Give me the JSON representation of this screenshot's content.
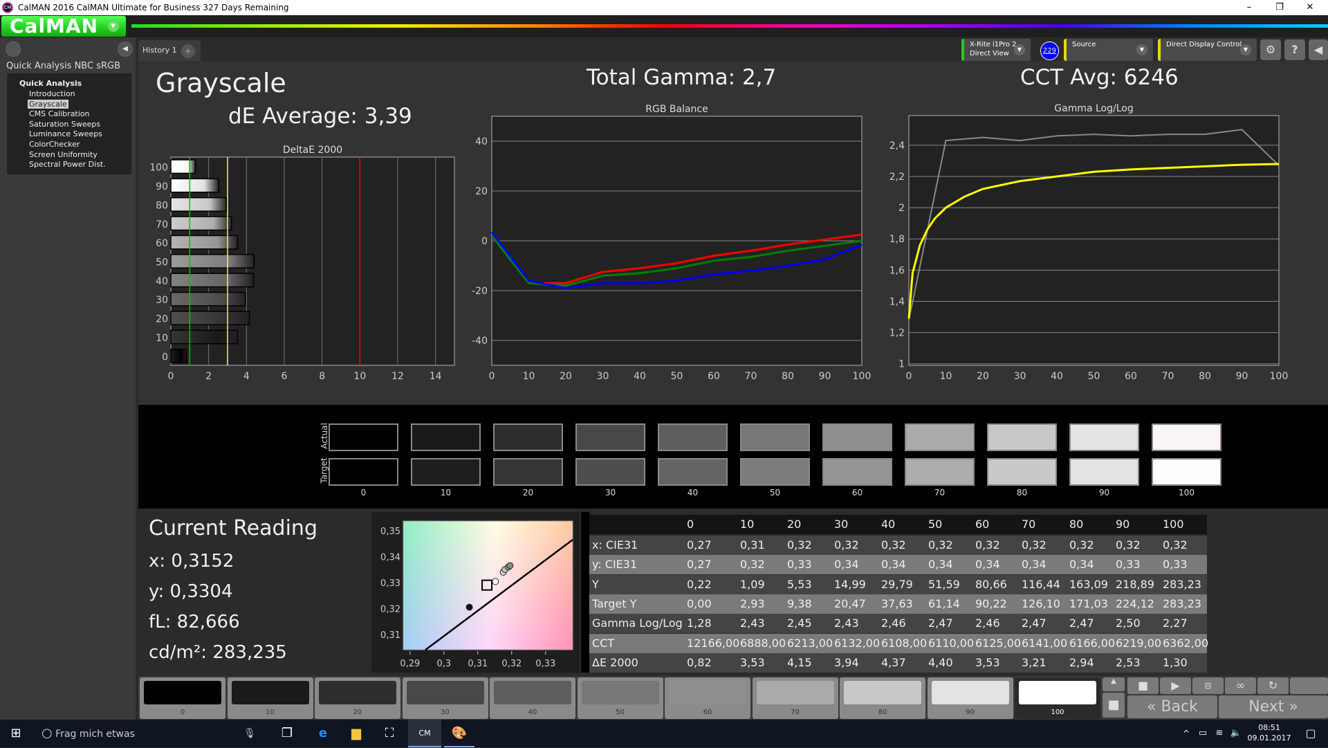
{
  "window": {
    "title": "CalMAN 2016 CalMAN Ultimate for Business 327 Days Remaining",
    "logo_text": "CM",
    "minimize": "–",
    "maximize": "❐",
    "close": "✕"
  },
  "app": {
    "logo": "CalMAN",
    "accent": "#33cc33"
  },
  "sidebar": {
    "title": "Quick Analysis NBC sRGB",
    "root": "Quick Analysis",
    "items": [
      {
        "label": "Introduction"
      },
      {
        "label": "Grayscale",
        "selected": true
      },
      {
        "label": "CMS Calibration"
      },
      {
        "label": "Saturation Sweeps"
      },
      {
        "label": "Luminance Sweeps"
      },
      {
        "label": "ColorChecker"
      },
      {
        "label": "Screen Uniformity"
      },
      {
        "label": "Spectral Power Dist."
      }
    ]
  },
  "tabs": [
    {
      "label": "History 1"
    }
  ],
  "tab_add": "+",
  "toolbar": {
    "meter_line1": "X-Rite i1Pro 2",
    "meter_line2": "Direct View",
    "badge": "229",
    "source": "Source",
    "display": "Direct Display Control",
    "settings_icon": "gear-icon",
    "help": "?",
    "collapse_icon": "chevron-left-icon"
  },
  "header": {
    "page_title": "Grayscale",
    "de_average": "dE Average: 3,39",
    "total_gamma": "Total Gamma: 2,7",
    "cct_avg": "CCT Avg: 6246"
  },
  "chart_data": [
    {
      "type": "bar",
      "title": "DeltaE 2000",
      "orientation": "horizontal",
      "categories": [
        "0",
        "10",
        "20",
        "30",
        "40",
        "50",
        "60",
        "70",
        "80",
        "90",
        "100"
      ],
      "values": [
        0.82,
        3.53,
        4.15,
        3.94,
        4.37,
        4.4,
        3.53,
        3.21,
        2.94,
        2.53,
        1.3
      ],
      "xlim": [
        0,
        15
      ],
      "xticks": [
        "0",
        "2",
        "4",
        "6",
        "8",
        "10",
        "12",
        "14"
      ],
      "reference_lines": [
        {
          "value": 1,
          "color": "#22aa22"
        },
        {
          "value": 3,
          "color": "#ffff00"
        },
        {
          "value": 10,
          "color": "#ff0000"
        }
      ],
      "grid": true
    },
    {
      "type": "line",
      "title": "RGB Balance",
      "x": [
        0,
        10,
        20,
        30,
        40,
        50,
        60,
        70,
        80,
        90,
        100
      ],
      "ylim": [
        -50,
        50
      ],
      "yticks": [
        "40",
        "20",
        "0",
        "-20",
        "-40"
      ],
      "xticks": [
        "0",
        "10",
        "20",
        "30",
        "40",
        "50",
        "60",
        "70",
        "80",
        "90",
        "100"
      ],
      "grid": true,
      "series": [
        {
          "color": "#ff0000",
          "values": [
            2,
            -17,
            -17,
            -12.5,
            -11,
            -9,
            -6,
            -4,
            -1.5,
            0.5,
            2.5
          ]
        },
        {
          "color": "#008000",
          "values": [
            2,
            -17,
            -18,
            -14,
            -13,
            -11,
            -8,
            -6.5,
            -4,
            -2,
            0
          ]
        },
        {
          "color": "#0000ff",
          "values": [
            3.5,
            -16,
            -19,
            -17,
            -17,
            -16,
            -13.5,
            -12,
            -10,
            -7.5,
            -1.5
          ]
        }
      ]
    },
    {
      "type": "line",
      "title": "Gamma Log/Log",
      "ylim": [
        0.99,
        2.59
      ],
      "yticks": [
        "2,4",
        "2,2",
        "2",
        "1,8",
        "1,6",
        "1,4",
        "1,2",
        "1"
      ],
      "xticks": [
        "0",
        "10",
        "20",
        "30",
        "40",
        "50",
        "60",
        "70",
        "80",
        "90",
        "100"
      ],
      "grid": true,
      "series": [
        {
          "color": "#8a8a8a",
          "x": [
            0,
            10,
            20,
            30,
            40,
            50,
            60,
            70,
            80,
            90,
            100
          ],
          "values": [
            1.28,
            2.43,
            2.45,
            2.43,
            2.46,
            2.47,
            2.46,
            2.47,
            2.47,
            2.5,
            2.27
          ]
        },
        {
          "color": "#ffff00",
          "x": [
            0,
            1,
            3,
            5,
            7,
            10,
            15,
            20,
            30,
            40,
            50,
            60,
            70,
            80,
            90,
            100
          ],
          "values": [
            1.29,
            1.58,
            1.76,
            1.86,
            1.93,
            2.0,
            2.07,
            2.12,
            2.17,
            2.2,
            2.23,
            2.245,
            2.255,
            2.265,
            2.275,
            2.28
          ]
        }
      ]
    },
    {
      "type": "scatter",
      "xlim": [
        0.288,
        0.338
      ],
      "ylim": [
        0.3041,
        0.3537
      ],
      "xticks": [
        "0,29",
        "0,3",
        "0,31",
        "0,32",
        "0,33"
      ],
      "yticks": [
        "0,35",
        "0,34",
        "0,33",
        "0,32",
        "0,31"
      ],
      "target": {
        "x": 0.3127,
        "y": 0.329
      },
      "locus": [
        [
          0.2945,
          0.304
        ],
        [
          0.338,
          0.3465
        ]
      ],
      "points": [
        {
          "x": 0.3075,
          "y": 0.3205,
          "color": "#111111"
        },
        {
          "x": 0.3175,
          "y": 0.334,
          "color": "#dddddd"
        },
        {
          "x": 0.318,
          "y": 0.335,
          "color": "#bbbbbb"
        },
        {
          "x": 0.319,
          "y": 0.336,
          "color": "#999999"
        },
        {
          "x": 0.3195,
          "y": 0.3365,
          "color": "#888888"
        },
        {
          "x": 0.3152,
          "y": 0.3304,
          "color": "#ffffff"
        }
      ]
    }
  ],
  "swatches": {
    "actual_label": "Actual",
    "target_label": "Target",
    "levels": [
      "0",
      "10",
      "20",
      "30",
      "40",
      "50",
      "60",
      "70",
      "80",
      "90",
      "100"
    ],
    "actual_colors": [
      "#000000",
      "#1a1a1a",
      "#2e2e2e",
      "#484848",
      "#5e5e5e",
      "#777777",
      "#8f8f8f",
      "#aaaaaa",
      "#c8c8c8",
      "#e4e2e2",
      "#fbf5f5"
    ],
    "target_colors": [
      "#000000",
      "#1e1e1e",
      "#363636",
      "#4e4e4e",
      "#646464",
      "#7c7c7c",
      "#959595",
      "#adadad",
      "#c9c9c9",
      "#e3e3e3",
      "#fdfdfd"
    ]
  },
  "current_reading": {
    "title": "Current Reading",
    "x": "x: 0,3152",
    "y": "y: 0,3304",
    "fl": "fL: 82,666",
    "cdm2": "cd/m²: 283,235"
  },
  "table": {
    "columns": [
      "0",
      "10",
      "20",
      "30",
      "40",
      "50",
      "60",
      "70",
      "80",
      "90",
      "100"
    ],
    "rows": [
      {
        "label": "x: CIE31",
        "values": [
          "0,27",
          "0,31",
          "0,32",
          "0,32",
          "0,32",
          "0,32",
          "0,32",
          "0,32",
          "0,32",
          "0,32",
          "0,32"
        ]
      },
      {
        "label": "y: CIE31",
        "values": [
          "0,27",
          "0,32",
          "0,33",
          "0,34",
          "0,34",
          "0,34",
          "0,34",
          "0,34",
          "0,34",
          "0,33",
          "0,33"
        ]
      },
      {
        "label": "Y",
        "values": [
          "0,22",
          "1,09",
          "5,53",
          "14,99",
          "29,79",
          "51,59",
          "80,66",
          "116,44",
          "163,09",
          "218,89",
          "283,23"
        ]
      },
      {
        "label": "Target Y",
        "values": [
          "0,00",
          "2,93",
          "9,38",
          "20,47",
          "37,63",
          "61,14",
          "90,22",
          "126,10",
          "171,03",
          "224,12",
          "283,23"
        ]
      },
      {
        "label": "Gamma Log/Log",
        "values": [
          "1,28",
          "2,43",
          "2,45",
          "2,43",
          "2,46",
          "2,47",
          "2,46",
          "2,47",
          "2,47",
          "2,50",
          "2,27"
        ]
      },
      {
        "label": "CCT",
        "values": [
          "12166,00",
          "6888,00",
          "6213,00",
          "6132,00",
          "6108,00",
          "6110,00",
          "6125,00",
          "6141,00",
          "6166,00",
          "6219,00",
          "6362,00"
        ]
      },
      {
        "label": "ΔE 2000",
        "values": [
          "0,82",
          "3,53",
          "4,15",
          "3,94",
          "4,37",
          "4,40",
          "3,53",
          "3,21",
          "2,94",
          "2,53",
          "1,30"
        ]
      }
    ]
  },
  "bottom": {
    "levels": [
      "0",
      "10",
      "20",
      "30",
      "40",
      "50",
      "60",
      "70",
      "80",
      "90",
      "100"
    ],
    "selected": "100",
    "back": "Back",
    "next": "Next"
  },
  "taskbar": {
    "search_placeholder": "Frag mich etwas",
    "time": "08:51",
    "date": "09.01.2017"
  }
}
